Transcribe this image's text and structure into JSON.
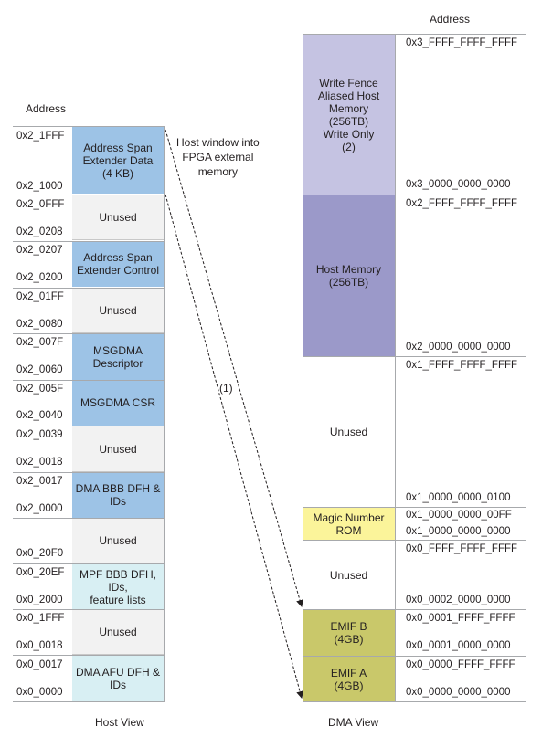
{
  "host": {
    "address_header": "Address",
    "view_label": "Host View",
    "window_label": "Host window into\nFPGA external\nmemory",
    "blocks": [
      {
        "label": "Address Span\nExtender Data\n(4 KB)",
        "high": "0x2_1FFF",
        "low": "0x2_1000",
        "color": "#9dc3e6"
      },
      {
        "label": "Unused",
        "high": "0x2_0FFF",
        "low": "0x2_0208",
        "color": "#f2f2f2"
      },
      {
        "label": "Address Span\nExtender Control",
        "high": "0x2_0207",
        "low": "0x2_0200",
        "color": "#9dc3e6"
      },
      {
        "label": "Unused",
        "high": "0x2_01FF",
        "low": "0x2_0080",
        "color": "#f2f2f2"
      },
      {
        "label": "MSGDMA\nDescriptor",
        "high": "0x2_007F",
        "low": "0x2_0060",
        "color": "#9dc3e6"
      },
      {
        "label": "MSGDMA CSR",
        "high": "0x2_005F",
        "low": "0x2_0040",
        "color": "#9dc3e6"
      },
      {
        "label": "Unused",
        "high": "0x2_0039",
        "low": "0x2_0018",
        "color": "#f2f2f2"
      },
      {
        "label": "DMA BBB DFH &\nIDs",
        "high": "0x2_0017",
        "low": "0x2_0000",
        "color": "#9dc3e6"
      },
      {
        "label": "Unused",
        "high": "",
        "low": "0x0_20F0",
        "color": "#f2f2f2"
      },
      {
        "label": "MPF BBB DFH, IDs,\nfeature lists",
        "high": "0x0_20EF",
        "low": "0x0_2000",
        "color": "#d8eff3"
      },
      {
        "label": "Unused",
        "high": "0x0_1FFF",
        "low": "0x0_0018",
        "color": "#f2f2f2"
      },
      {
        "label": "DMA AFU DFH &\nIDs",
        "high": "0x0_0017",
        "low": "0x0_0000",
        "color": "#d8eff3"
      }
    ]
  },
  "dma": {
    "address_header": "Address",
    "view_label": "DMA View",
    "arrow_label": "(1)",
    "blocks": [
      {
        "label": "Write Fence\nAliased Host\nMemory\n(256TB)\nWrite Only\n(2)",
        "high": "0x3_FFFF_FFFF_FFFF",
        "low": "0x3_0000_0000_0000",
        "color": "#c5c3e2"
      },
      {
        "label": "Host Memory\n(256TB)",
        "high": "0x2_FFFF_FFFF_FFFF",
        "low": "0x2_0000_0000_0000",
        "color": "#9b99c9"
      },
      {
        "label": "Unused",
        "high": "0x1_FFFF_FFFF_FFFF",
        "low": "0x1_0000_0000_0100",
        "color": "#ffffff"
      },
      {
        "label": "Magic Number\nROM",
        "high": "0x1_0000_0000_00FF",
        "low": "0x1_0000_0000_0000",
        "color": "#fbf49a"
      },
      {
        "label": "Unused",
        "high": "0x0_FFFF_FFFF_FFFF",
        "low": "0x0_0002_0000_0000",
        "color": "#ffffff"
      },
      {
        "label": "EMIF B\n(4GB)",
        "high": "0x0_0001_FFFF_FFFF",
        "low": "0x0_0001_0000_0000",
        "color": "#c9c86a"
      },
      {
        "label": "EMIF A\n(4GB)",
        "high": "0x0_0000_FFFF_FFFF",
        "low": "0x0_0000_0000_0000",
        "color": "#c9c86a"
      }
    ]
  }
}
